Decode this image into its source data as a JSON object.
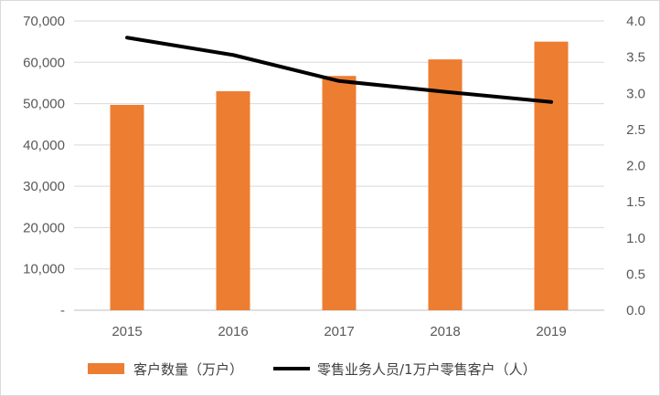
{
  "chart_data": {
    "type": "bar",
    "title": "",
    "categories": [
      "2015",
      "2016",
      "2017",
      "2018",
      "2019"
    ],
    "series": [
      {
        "name": "客户数量（万户）",
        "type": "bar",
        "axis": "left",
        "color": "#ED7D31",
        "values": [
          49700,
          53000,
          56700,
          60700,
          65000
        ]
      },
      {
        "name": "零售业务人员/1万户零售客户（人）",
        "type": "line",
        "axis": "right",
        "color": "#000000",
        "values": [
          3.77,
          3.53,
          3.17,
          3.02,
          2.88
        ]
      }
    ],
    "y_left": {
      "ylim": [
        0,
        70000
      ],
      "ticks": [
        0,
        10000,
        20000,
        30000,
        40000,
        50000,
        60000,
        70000
      ],
      "tick_labels": [
        "-",
        "10,000",
        "20,000",
        "30,000",
        "40,000",
        "50,000",
        "60,000",
        "70,000"
      ]
    },
    "y_right": {
      "ylim": [
        0,
        4
      ],
      "ticks": [
        0,
        0.5,
        1,
        1.5,
        2,
        2.5,
        3,
        3.5,
        4
      ],
      "tick_labels": [
        "0.0",
        "0.5",
        "1.0",
        "1.5",
        "2.0",
        "2.5",
        "3.0",
        "3.5",
        "4.0"
      ]
    },
    "grid": true,
    "legend_position": "bottom"
  }
}
